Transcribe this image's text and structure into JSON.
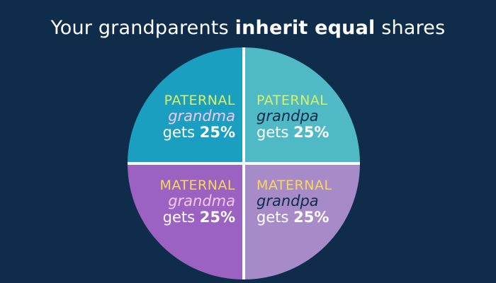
{
  "header": {
    "title_part1": "Your grandparents ",
    "title_bold": "inherit equal",
    "title_part2": " shares"
  },
  "colors": {
    "background": "#0f2d4a",
    "divider": "#ffffff",
    "paternal_label": "#d9f26b",
    "maternal_label": "#f7d85a"
  },
  "chart_data": {
    "type": "pie",
    "slices": [
      {
        "category": "PATERNAL",
        "who_prefix": "grand",
        "who_suffix": "ma",
        "gets": "gets ",
        "share_label": "25%",
        "value": 25,
        "fill": "#1a9fc0",
        "category_color": "#d9f26b",
        "who_color": "#f3c7ef"
      },
      {
        "category": "PATERNAL",
        "who_prefix": "grandpa",
        "who_suffix": "",
        "gets": "gets ",
        "share_label": "25%",
        "value": 25,
        "fill": "#4fb9c5",
        "category_color": "#d9f26b",
        "who_color": "#0f2d4a"
      },
      {
        "category": "MATERNAL",
        "who_prefix": "grandpa",
        "who_suffix": "",
        "gets": "gets ",
        "share_label": "25%",
        "value": 25,
        "fill": "#a78ac8",
        "category_color": "#f7d85a",
        "who_color": "#0f2d4a"
      },
      {
        "category": "MATERNAL",
        "who_prefix": "grandma",
        "who_suffix": "",
        "gets": "gets ",
        "share_label": "25%",
        "value": 25,
        "fill": "#9b62c2",
        "category_color": "#f7d85a",
        "who_color": "#f3c7ef"
      }
    ]
  }
}
